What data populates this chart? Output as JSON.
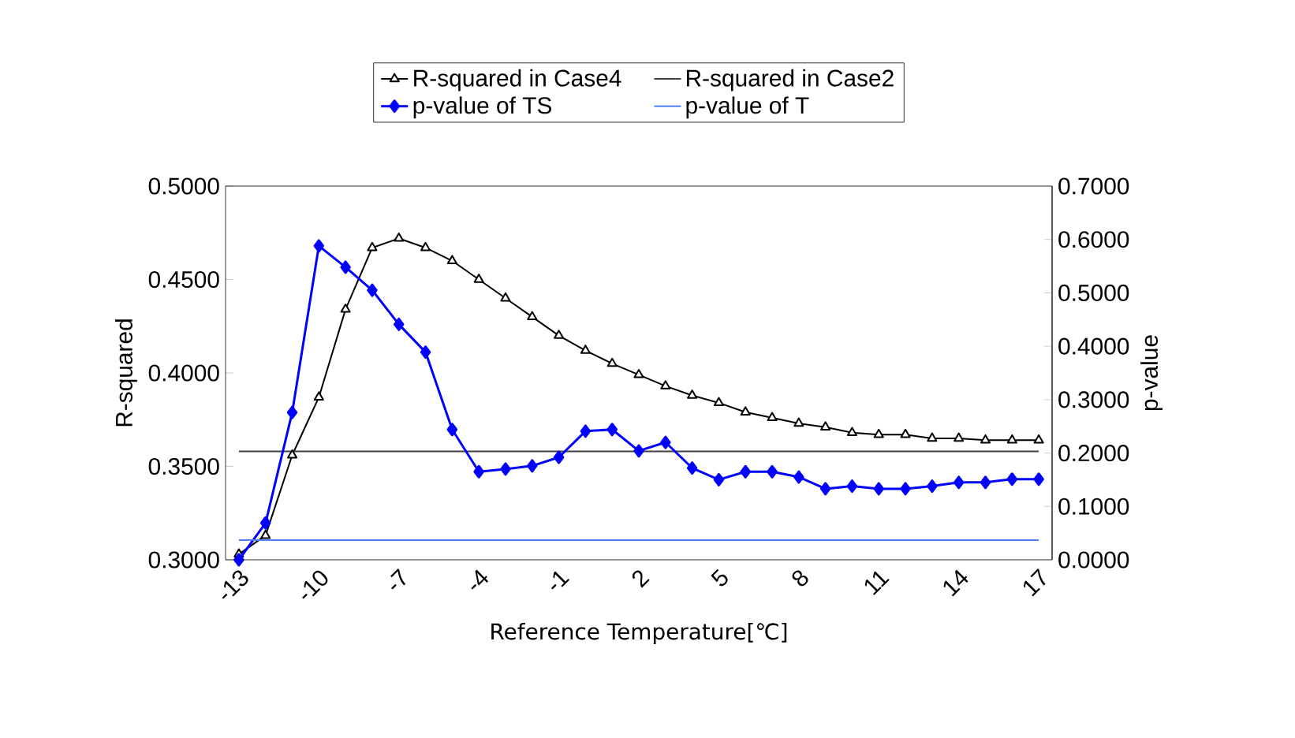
{
  "chart_data": {
    "type": "line",
    "categories": [
      "-13",
      null,
      null,
      "-10",
      null,
      null,
      "-7",
      null,
      null,
      "-4",
      null,
      null,
      "-1",
      null,
      null,
      "2",
      null,
      null,
      "5",
      null,
      null,
      "8",
      null,
      null,
      "11",
      null,
      null,
      "14",
      null,
      null,
      "17"
    ],
    "series": [
      {
        "name": "R-squared in Case4",
        "color": "#000000",
        "marker": "triangle",
        "axis": "y",
        "values": [
          0.303,
          0.313,
          0.356,
          0.387,
          0.434,
          0.467,
          0.472,
          0.467,
          0.46,
          0.45,
          0.44,
          0.43,
          0.42,
          0.412,
          0.405,
          0.399,
          0.393,
          0.388,
          0.384,
          0.379,
          0.376,
          0.373,
          0.371,
          0.368,
          0.367,
          0.367,
          0.365,
          0.365,
          0.364,
          0.364,
          0.364
        ]
      },
      {
        "name": "R-squared in Case2",
        "color": "#404040",
        "marker": "none",
        "axis": "y",
        "values": [
          0.358,
          0.358,
          0.358,
          0.358,
          0.358,
          0.358,
          0.358,
          0.358,
          0.358,
          0.358,
          0.358,
          0.358,
          0.358,
          0.358,
          0.358,
          0.358,
          0.358,
          0.358,
          0.358,
          0.358,
          0.358,
          0.358,
          0.358,
          0.358,
          0.358,
          0.358,
          0.358,
          0.358,
          0.358,
          0.358,
          0.358
        ]
      },
      {
        "name": "p-value of TS",
        "color": "#0000ff",
        "marker": "diamond",
        "axis": "y2",
        "values": [
          0.0,
          0.069,
          0.276,
          0.588,
          0.548,
          0.505,
          0.441,
          0.389,
          0.244,
          0.165,
          0.17,
          0.176,
          0.192,
          0.241,
          0.244,
          0.204,
          0.22,
          0.172,
          0.15,
          0.165,
          0.165,
          0.155,
          0.133,
          0.138,
          0.133,
          0.133,
          0.138,
          0.145,
          0.145,
          0.151,
          0.151
        ]
      },
      {
        "name": "p-value of T",
        "color": "#4f81ff",
        "marker": "none",
        "axis": "y2",
        "values": [
          0.037,
          0.037,
          0.037,
          0.037,
          0.037,
          0.037,
          0.037,
          0.037,
          0.037,
          0.037,
          0.037,
          0.037,
          0.037,
          0.037,
          0.037,
          0.037,
          0.037,
          0.037,
          0.037,
          0.037,
          0.037,
          0.037,
          0.037,
          0.037,
          0.037,
          0.037,
          0.037,
          0.037,
          0.037,
          0.037,
          0.037
        ]
      }
    ],
    "xlabel": "Reference Temperature[℃]",
    "ylabel": "R-squared",
    "y2label": "p-value",
    "ylim": [
      0.3,
      0.5
    ],
    "yticks": [
      {
        "value": 0.3,
        "label": "0.3000"
      },
      {
        "value": 0.35,
        "label": "0.3500"
      },
      {
        "value": 0.4,
        "label": "0.4000"
      },
      {
        "value": 0.45,
        "label": "0.4500"
      },
      {
        "value": 0.5,
        "label": "0.5000"
      }
    ],
    "y2lim": [
      0,
      0.7
    ],
    "y2ticks": [
      {
        "value": 0,
        "label": "0.0000"
      },
      {
        "value": 0.1,
        "label": "0.1000"
      },
      {
        "value": 0.2,
        "label": "0.2000"
      },
      {
        "value": 0.3,
        "label": "0.3000"
      },
      {
        "value": 0.4,
        "label": "0.4000"
      },
      {
        "value": 0.5,
        "label": "0.5000"
      },
      {
        "value": 0.6,
        "label": "0.6000"
      },
      {
        "value": 0.7,
        "label": "0.7000"
      }
    ],
    "legend": "top"
  }
}
